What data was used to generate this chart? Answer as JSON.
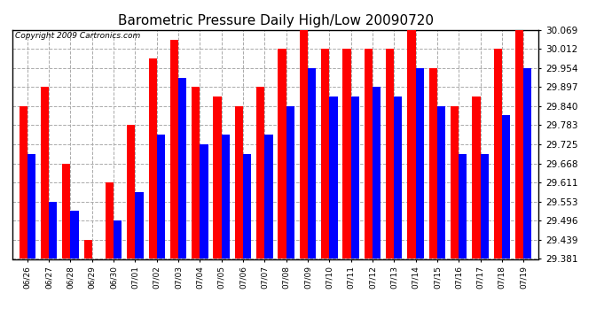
{
  "title": "Barometric Pressure Daily High/Low 20090720",
  "copyright": "Copyright 2009 Cartronics.com",
  "dates": [
    "06/26",
    "06/27",
    "06/28",
    "06/29",
    "06/30",
    "07/01",
    "07/02",
    "07/03",
    "07/04",
    "07/05",
    "07/06",
    "07/07",
    "07/08",
    "07/09",
    "07/10",
    "07/11",
    "07/12",
    "07/13",
    "07/14",
    "07/15",
    "07/16",
    "07/17",
    "07/18",
    "07/19"
  ],
  "highs": [
    29.84,
    29.897,
    29.668,
    29.439,
    29.611,
    29.783,
    29.982,
    30.04,
    29.897,
    29.868,
    29.84,
    29.897,
    30.012,
    30.069,
    30.012,
    30.012,
    30.012,
    30.012,
    30.069,
    29.954,
    29.84,
    29.868,
    30.012,
    30.069
  ],
  "lows": [
    29.697,
    29.553,
    29.525,
    29.381,
    29.496,
    29.582,
    29.754,
    29.925,
    29.725,
    29.754,
    29.697,
    29.754,
    29.84,
    29.954,
    29.868,
    29.868,
    29.897,
    29.868,
    29.954,
    29.84,
    29.697,
    29.697,
    29.812,
    29.954
  ],
  "high_color": "#FF0000",
  "low_color": "#0000FF",
  "bg_color": "#FFFFFF",
  "grid_color": "#AAAAAA",
  "ylim_min": 29.381,
  "ylim_max": 30.069,
  "yticks": [
    29.381,
    29.439,
    29.496,
    29.553,
    29.611,
    29.668,
    29.725,
    29.783,
    29.84,
    29.897,
    29.954,
    30.012,
    30.069
  ],
  "title_fontsize": 11,
  "copyright_fontsize": 6.5,
  "xtick_fontsize": 6.5,
  "ytick_fontsize": 7.5,
  "bar_width": 0.38,
  "xlim_left": -0.7,
  "xlim_right": 23.7
}
